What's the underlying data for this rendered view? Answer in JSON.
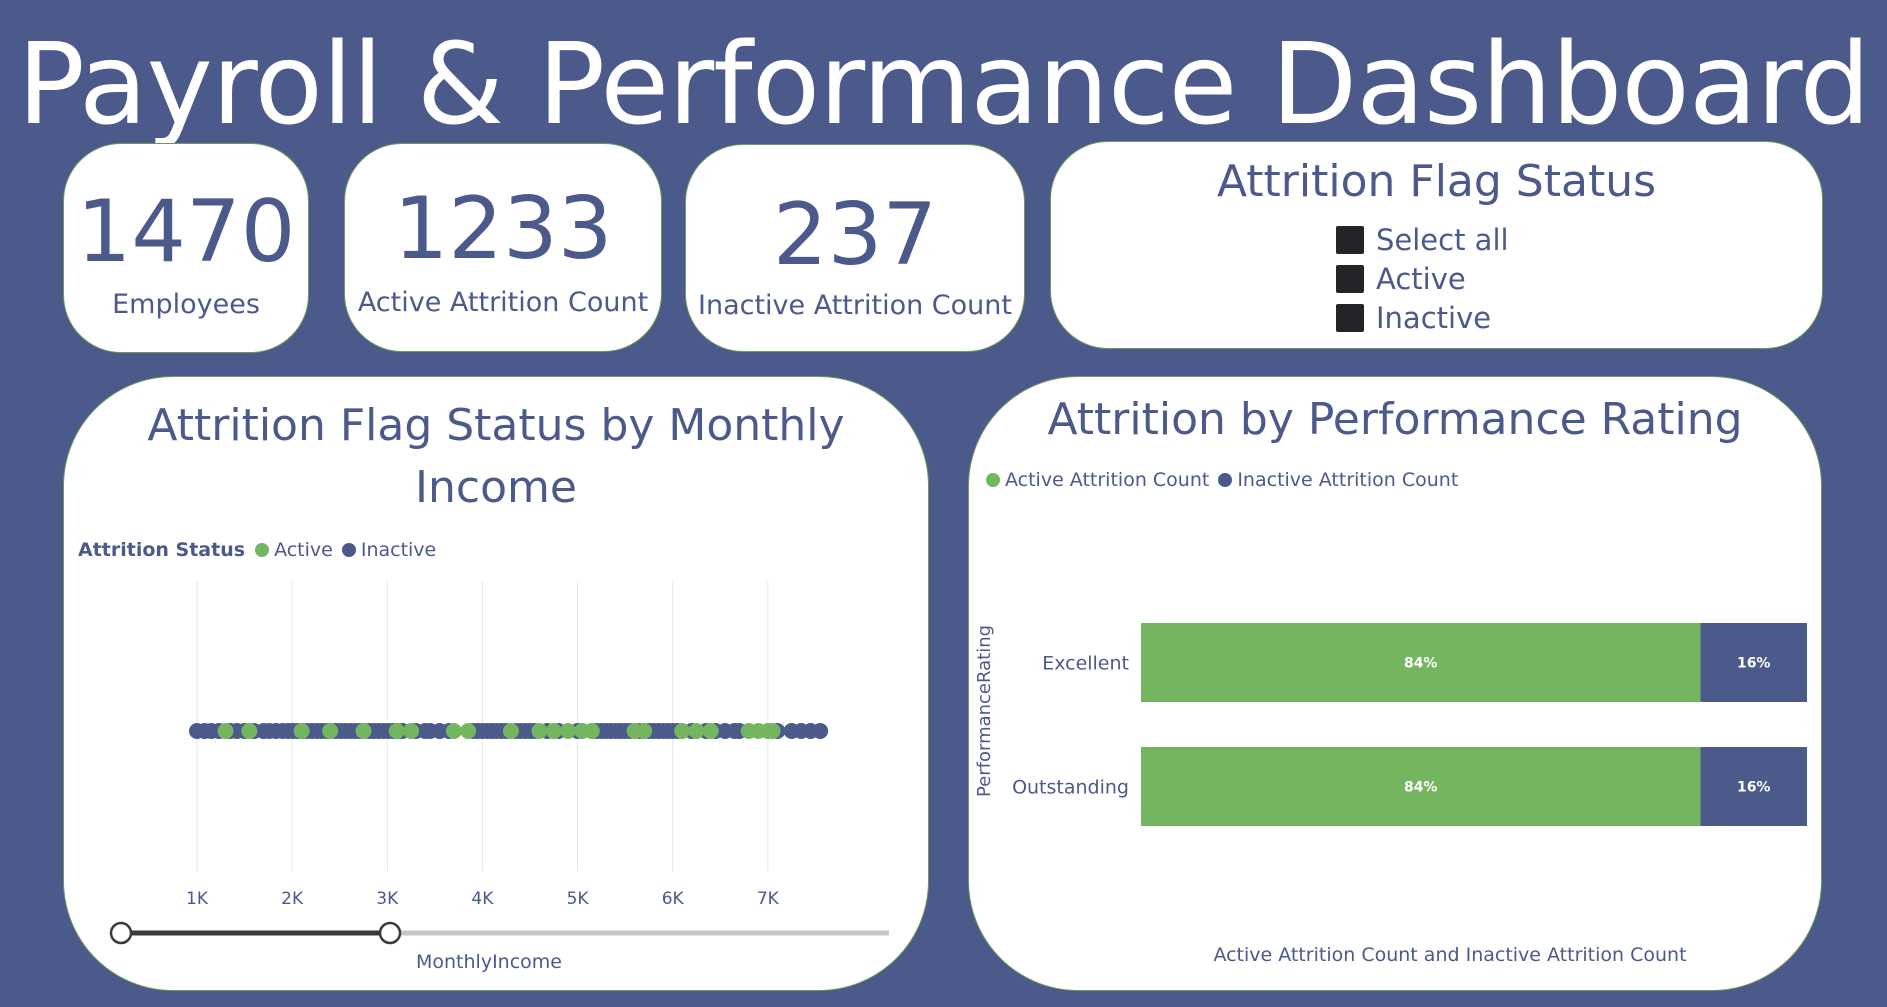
{
  "title": "Payroll & Performance Dashboard",
  "kpis": {
    "employees": {
      "value": "1470",
      "label": "Employees"
    },
    "active": {
      "value": "1233",
      "label": "Active Attrition Count"
    },
    "inactive": {
      "value": "237",
      "label": "Inactive Attrition Count"
    }
  },
  "slicer": {
    "title": "Attrition Flag Status",
    "items": [
      "Select all",
      "Active",
      "Inactive"
    ]
  },
  "colors": {
    "background": "#4b5a8b",
    "active": "#74b660",
    "inactive": "#4b5a8b",
    "card": "#ffffff"
  },
  "scatter": {
    "title": "Attrition Flag Status by Monthly Income",
    "legend_title": "Attrition Status",
    "legend": [
      "Active",
      "Inactive"
    ],
    "xlabel": "MonthlyIncome",
    "slider_range": [
      1000,
      3300
    ]
  },
  "bar": {
    "title": "Attrition by Performance Rating",
    "legend": [
      "Active Attrition Count",
      "Inactive Attrition Count"
    ],
    "ylabel": "PerformanceRating",
    "xlabel": "Active Attrition Count and Inactive Attrition Count"
  },
  "chart_data": [
    {
      "type": "scatter",
      "title": "Attrition Flag Status by Monthly Income",
      "xlabel": "MonthlyIncome",
      "x_ticks": [
        "1K",
        "2K",
        "3K",
        "4K",
        "5K",
        "6K",
        "7K"
      ],
      "x_tick_values": [
        1000,
        2000,
        3000,
        4000,
        5000,
        6000,
        7000
      ],
      "xlim": [
        1000,
        7550
      ],
      "grid": true,
      "legend_position": "top-left",
      "series": [
        {
          "name": "Active",
          "color": "#74b660",
          "values": [
            1300,
            1550,
            2100,
            2400,
            2750,
            3100,
            3250,
            3700,
            3850,
            4300,
            4600,
            4750,
            4900,
            5050,
            5150,
            5600,
            5700,
            6100,
            6250,
            6400,
            6800,
            6900,
            7000,
            7050
          ]
        },
        {
          "name": "Inactive",
          "color": "#4b5a8b",
          "values": [
            1000,
            1080,
            1150,
            1230,
            1350,
            1420,
            1500,
            1600,
            1700,
            1760,
            1830,
            1900,
            1960,
            2010,
            2060,
            2110,
            2160,
            2210,
            2260,
            2310,
            2360,
            2410,
            2460,
            2510,
            2560,
            2610,
            2660,
            2710,
            2760,
            2810,
            2860,
            2910,
            2960,
            3010,
            3060,
            3110,
            3160,
            3300,
            3400,
            3450,
            3550,
            3650,
            3900,
            3950,
            4000,
            4050,
            4100,
            4150,
            4200,
            4250,
            4350,
            4400,
            4450,
            4500,
            4550,
            4680,
            4800,
            5000,
            5150,
            5200,
            5250,
            5300,
            5350,
            5400,
            5450,
            5500,
            5550,
            5650,
            5750,
            5800,
            5850,
            5900,
            5950,
            6000,
            6050,
            6200,
            6350,
            6450,
            6550,
            6650,
            6700,
            7100,
            7250,
            7350,
            7450,
            7550
          ]
        }
      ]
    },
    {
      "type": "bar",
      "orientation": "horizontal",
      "stacked": "100%",
      "title": "Attrition by Performance Rating",
      "categories": [
        "Excellent",
        "Outstanding"
      ],
      "ylabel": "PerformanceRating",
      "xlabel": "Active Attrition Count and Inactive Attrition Count",
      "legend_position": "top-left",
      "series": [
        {
          "name": "Active Attrition Count",
          "color": "#74b660",
          "values": [
            84,
            84
          ],
          "labels": [
            "84%",
            "84%"
          ]
        },
        {
          "name": "Inactive Attrition Count",
          "color": "#4b5a8b",
          "values": [
            16,
            16
          ],
          "labels": [
            "16%",
            "16%"
          ]
        }
      ]
    }
  ]
}
